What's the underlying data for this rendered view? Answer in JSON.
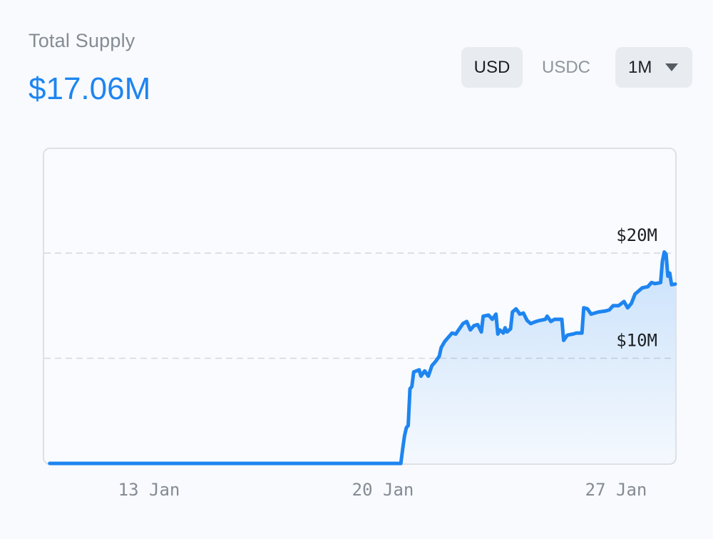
{
  "header": {
    "title": "Total Supply",
    "value": "$17.06M"
  },
  "controls": {
    "currency_options": [
      "USD",
      "USDC"
    ],
    "selected_currency": "USD",
    "period": "1M"
  },
  "colors": {
    "line": "#1e85f0",
    "value_text": "#1e85f0",
    "gridline": "#d3d7dc"
  },
  "icons": {
    "period_dropdown": "caret-down-icon"
  },
  "chart_data": {
    "type": "area",
    "title": "Total Supply",
    "xlabel": "",
    "ylabel": "",
    "x_ticks": [
      "13 Jan",
      "20 Jan",
      "27 Jan"
    ],
    "y_ticks": [
      {
        "value": 10000000,
        "label": "$10M"
      },
      {
        "value": 20000000,
        "label": "$20M"
      }
    ],
    "ylim": [
      0,
      20000000
    ],
    "grid": "horizontal dashed",
    "series": [
      {
        "values": [
          [
            10.6,
            0
          ],
          [
            11.5,
            0
          ],
          [
            12.5,
            0
          ],
          [
            13.5,
            0
          ],
          [
            14.5,
            0
          ],
          [
            15.5,
            0
          ],
          [
            16.5,
            0
          ],
          [
            17.5,
            0
          ],
          [
            18.5,
            0
          ],
          [
            19.5,
            0
          ],
          [
            20.2,
            0
          ],
          [
            20.25,
            1.4
          ],
          [
            20.3,
            2.6
          ],
          [
            20.35,
            3.4
          ],
          [
            20.4,
            3.6
          ],
          [
            20.45,
            7.1
          ],
          [
            20.5,
            7.3
          ],
          [
            20.55,
            8.7
          ],
          [
            20.7,
            8.9
          ],
          [
            20.75,
            8.3
          ],
          [
            20.85,
            8.8
          ],
          [
            20.95,
            8.3
          ],
          [
            21.05,
            9.3
          ],
          [
            21.15,
            9.7
          ],
          [
            21.25,
            10.2
          ],
          [
            21.3,
            11.0
          ],
          [
            21.4,
            11.6
          ],
          [
            21.5,
            12.0
          ],
          [
            21.6,
            12.4
          ],
          [
            21.7,
            12.3
          ],
          [
            21.8,
            12.8
          ],
          [
            21.9,
            13.3
          ],
          [
            22.0,
            13.5
          ],
          [
            22.1,
            12.7
          ],
          [
            22.2,
            13.1
          ],
          [
            22.3,
            13.2
          ],
          [
            22.4,
            12.5
          ],
          [
            22.45,
            14.0
          ],
          [
            22.6,
            14.1
          ],
          [
            22.7,
            13.7
          ],
          [
            22.8,
            14.2
          ],
          [
            22.85,
            12.3
          ],
          [
            22.9,
            12.7
          ],
          [
            23.0,
            12.4
          ],
          [
            23.05,
            12.9
          ],
          [
            23.1,
            12.5
          ],
          [
            23.2,
            12.8
          ],
          [
            23.25,
            14.4
          ],
          [
            23.35,
            14.7
          ],
          [
            23.45,
            14.2
          ],
          [
            23.55,
            14.3
          ],
          [
            23.65,
            13.6
          ],
          [
            23.75,
            13.3
          ],
          [
            23.9,
            13.5
          ],
          [
            24.0,
            13.6
          ],
          [
            24.15,
            13.7
          ],
          [
            24.2,
            14.0
          ],
          [
            24.3,
            13.5
          ],
          [
            24.4,
            13.7
          ],
          [
            24.6,
            13.7
          ],
          [
            24.65,
            11.7
          ],
          [
            24.75,
            12.2
          ],
          [
            24.9,
            12.3
          ],
          [
            25.0,
            12.4
          ],
          [
            25.15,
            12.4
          ],
          [
            25.2,
            14.8
          ],
          [
            25.3,
            14.7
          ],
          [
            25.4,
            14.2
          ],
          [
            25.6,
            14.4
          ],
          [
            25.8,
            14.5
          ],
          [
            25.9,
            14.6
          ],
          [
            26.0,
            15.0
          ],
          [
            26.15,
            15.0
          ],
          [
            26.3,
            15.4
          ],
          [
            26.4,
            14.8
          ],
          [
            26.5,
            15.2
          ],
          [
            26.6,
            16.1
          ],
          [
            26.8,
            16.7
          ],
          [
            26.95,
            16.8
          ],
          [
            27.05,
            17.2
          ],
          [
            27.15,
            17.1
          ],
          [
            27.3,
            17.2
          ],
          [
            27.35,
            19.2
          ],
          [
            27.4,
            20.1
          ],
          [
            27.45,
            19.9
          ],
          [
            27.5,
            17.8
          ],
          [
            27.55,
            18.1
          ],
          [
            27.6,
            17.0
          ],
          [
            27.7,
            17.06
          ]
        ]
      }
    ]
  }
}
